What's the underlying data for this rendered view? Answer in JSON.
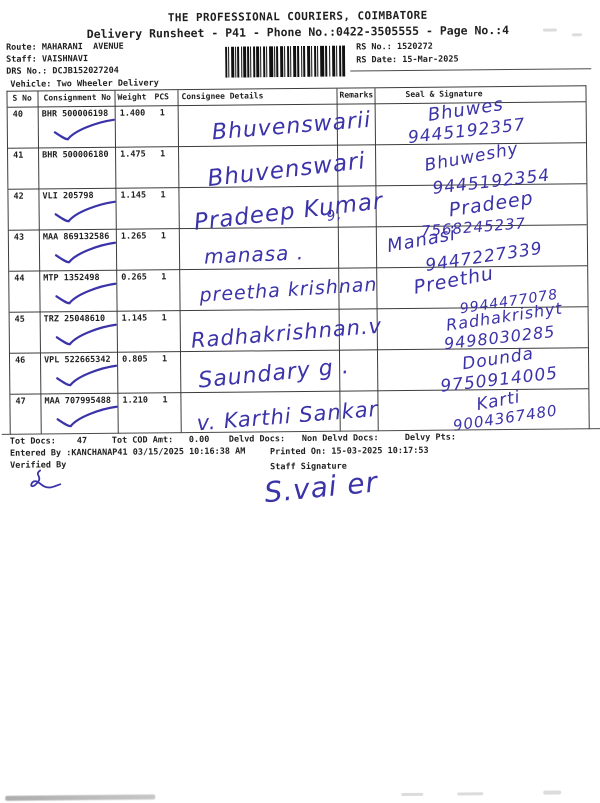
{
  "header": {
    "title": "THE PROFESSIONAL COURIERS, COIMBATORE",
    "subtitle": "Delivery Runsheet - P41 - Phone No.:0422-3505555 - Page No.:4"
  },
  "meta": {
    "route_label": "Route:",
    "route_value": "MAHARANI  AVENUE",
    "staff_label": "Staff:",
    "staff_value": "VAISHNAVI",
    "drs_label": "DRS No.:",
    "drs_value": "DCJB152027204",
    "vehicle_label": "Vehicle:",
    "vehicle_value": "Two Wheeler Delivery"
  },
  "rs": {
    "no_label": "RS No.:",
    "no_value": "1520272",
    "date_label": "RS Date:",
    "date_value": "15-Mar-2025"
  },
  "icons": {
    "barcode": "barcode",
    "checkmark": "blue-ink-checkmark"
  },
  "ink_color": "#3b33a8",
  "table": {
    "headers": {
      "s_no": "S No",
      "consignment": "Consignment No",
      "weight": "Weight",
      "pcs": "PCS",
      "consignee": "Consignee Details",
      "remarks": "Remarks",
      "seal": "Seal & Signature"
    },
    "rows": [
      {
        "s_no": "40",
        "consignment_no": "BHR 500006198",
        "weight": "1.400",
        "pcs": "1",
        "checked": true,
        "consignee": "Bhuvenswarii",
        "sig_name": "Bhuwes",
        "sig_phone": "9445192357"
      },
      {
        "s_no": "41",
        "consignment_no": "BHR 500006180",
        "weight": "1.475",
        "pcs": "1",
        "checked": false,
        "consignee": "Bhuvenswari",
        "sig_name": "Bhuweshy",
        "sig_phone": "9445192354"
      },
      {
        "s_no": "42",
        "consignment_no": "VLI 205798",
        "weight": "1.145",
        "pcs": "1",
        "checked": true,
        "consignee": "Pradeep Kumar",
        "sig_name": "Pradeep",
        "sig_phone": "7568245237"
      },
      {
        "s_no": "43",
        "consignment_no": "MAA 869132586",
        "weight": "1.265",
        "pcs": "1",
        "checked": true,
        "consignee": "manasa .",
        "sig_name": "Manasi",
        "sig_phone": "9447227339"
      },
      {
        "s_no": "44",
        "consignment_no": "MTP 1352498",
        "weight": "0.265",
        "pcs": "1",
        "checked": true,
        "consignee": "preetha krishnan",
        "sig_name": "Preethu",
        "sig_phone": "9944477078"
      },
      {
        "s_no": "45",
        "consignment_no": "TRZ 25048610",
        "weight": "1.145",
        "pcs": "1",
        "checked": true,
        "consignee": "Radhakrishnan.v",
        "sig_name": "Radhakrishyt",
        "sig_phone": "9498030285"
      },
      {
        "s_no": "46",
        "consignment_no": "VPL 522665342",
        "weight": "0.805",
        "pcs": "1",
        "checked": true,
        "consignee": "Saundary g .",
        "sig_name": "Dounda",
        "sig_phone": "9750914005"
      },
      {
        "s_no": "47",
        "consignment_no": "MAA 707995488",
        "weight": "1.210",
        "pcs": "1",
        "checked": true,
        "consignee": "v. Karthi Sankar",
        "sig_name": "Karti",
        "sig_phone": "9004367480"
      }
    ],
    "stray_remark": "9,"
  },
  "totals": {
    "tot_docs_label": "Tot Docs:",
    "tot_docs_value": "47",
    "cod_label": "Tot COD Amt:",
    "cod_value": "0.00",
    "delvd_label": "Delvd Docs:",
    "non_delvd_label": "Non Delvd Docs:",
    "delvy_label": "Delvy Pts:"
  },
  "footer": {
    "entered_line": "Entered By :KANCHANAP41 03/15/2025 10:16:38 AM",
    "printed_line": "Printed On: 15-03-2025 10:17:53",
    "verified_label": "Verified By",
    "staff_label": "Staff Signature",
    "staff_signature": "S.vai er"
  }
}
